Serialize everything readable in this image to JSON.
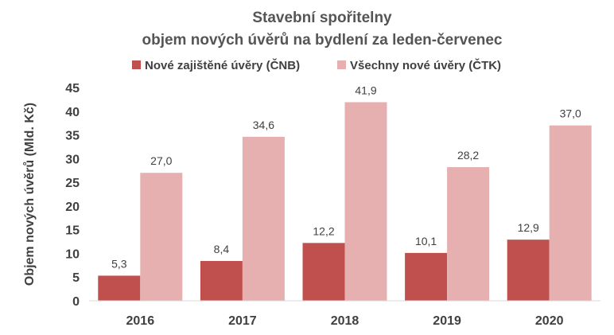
{
  "chart_data": {
    "type": "bar",
    "title": [
      "Stavební spořitelny",
      "objem nových úvěrů na bydlení za leden-červenec"
    ],
    "ylabel": "Objem nových úvěrů (Mld. Kč)",
    "xlabel": "",
    "categories": [
      "2016",
      "2017",
      "2018",
      "2019",
      "2020"
    ],
    "series": [
      {
        "name": "Nové zajištěné úvěry (ČNB)",
        "values": [
          5.3,
          8.4,
          12.2,
          10.1,
          12.9
        ],
        "labels": [
          "5,3",
          "8,4",
          "12,2",
          "10,1",
          "12,9"
        ],
        "color": "#c0504d"
      },
      {
        "name": "Všechny nové úvěry (ČTK)",
        "values": [
          27.0,
          34.6,
          41.9,
          28.2,
          37.0
        ],
        "labels": [
          "27,0",
          "34,6",
          "41,9",
          "28,2",
          "37,0"
        ],
        "color": "#e6b0b0"
      }
    ],
    "ylim": [
      0,
      45
    ],
    "yticks": [
      0,
      5,
      10,
      15,
      20,
      25,
      30,
      35,
      40,
      45
    ],
    "grid": false,
    "legend": "top"
  }
}
